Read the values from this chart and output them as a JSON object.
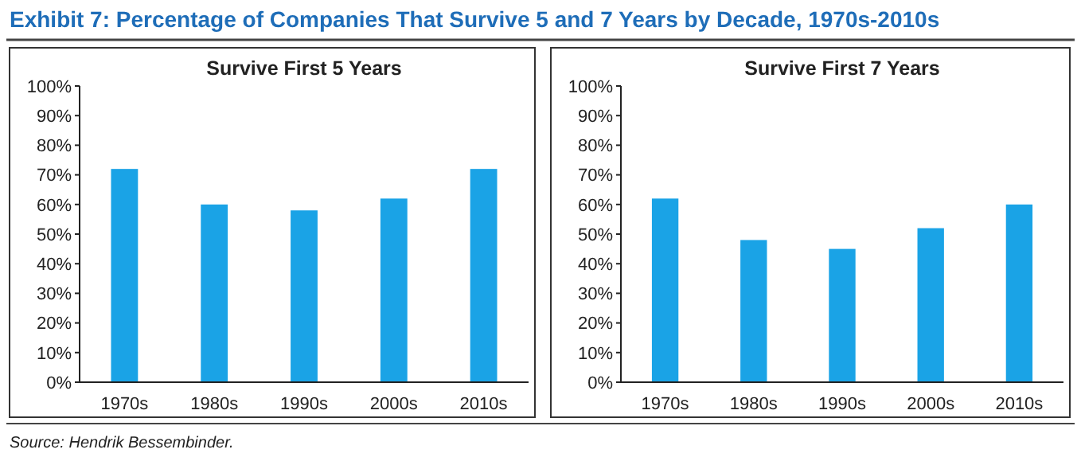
{
  "chart_data": [
    {
      "type": "bar",
      "title": "Survive First 5 Years",
      "categories": [
        "1970s",
        "1980s",
        "1990s",
        "2000s",
        "2010s"
      ],
      "values": [
        72,
        60,
        58,
        62,
        72
      ],
      "color": "#1aa3e6",
      "ylim": [
        0,
        100
      ],
      "yticks": [
        {
          "value": 0,
          "label": "0%"
        },
        {
          "value": 10,
          "label": "10%"
        },
        {
          "value": 20,
          "label": "20%"
        },
        {
          "value": 30,
          "label": "30%"
        },
        {
          "value": 40,
          "label": "40%"
        },
        {
          "value": 50,
          "label": "50%"
        },
        {
          "value": 60,
          "label": "60%"
        },
        {
          "value": 70,
          "label": "70%"
        },
        {
          "value": 80,
          "label": "80%"
        },
        {
          "value": 90,
          "label": "90%"
        },
        {
          "value": 100,
          "label": "100%"
        }
      ],
      "grid": false,
      "annotations": [
        "Exhibit 7: Percentage of Companies That Survive 5 and 7 Years by Decade, 1970s-2010s",
        "Source: Hendrik Bessembinder."
      ]
    },
    {
      "type": "bar",
      "title": "Survive First 7 Years",
      "categories": [
        "1970s",
        "1980s",
        "1990s",
        "2000s",
        "2010s"
      ],
      "values": [
        62,
        48,
        45,
        52,
        60
      ],
      "color": "#1aa3e6",
      "ylim": [
        0,
        100
      ],
      "yticks": [
        {
          "value": 0,
          "label": "0%"
        },
        {
          "value": 10,
          "label": "10%"
        },
        {
          "value": 20,
          "label": "20%"
        },
        {
          "value": 30,
          "label": "30%"
        },
        {
          "value": 40,
          "label": "40%"
        },
        {
          "value": 50,
          "label": "50%"
        },
        {
          "value": 60,
          "label": "60%"
        },
        {
          "value": 70,
          "label": "70%"
        },
        {
          "value": 80,
          "label": "80%"
        },
        {
          "value": 90,
          "label": "90%"
        },
        {
          "value": 100,
          "label": "100%"
        }
      ],
      "grid": false
    }
  ]
}
